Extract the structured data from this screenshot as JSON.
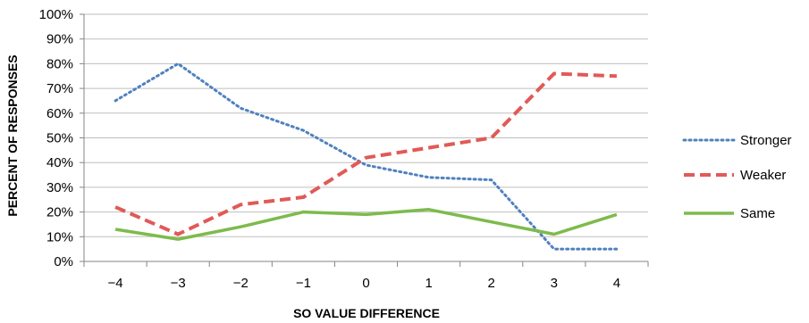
{
  "chart_data": {
    "type": "line",
    "xlabel": "SO VALUE DIFFERENCE",
    "ylabel": "PERCENT OF RESPONSES",
    "categories": [
      "−4",
      "−3",
      "−2",
      "−1",
      "0",
      "1",
      "2",
      "3",
      "4"
    ],
    "ylim": [
      0,
      100
    ],
    "yticks": [
      "0%",
      "10%",
      "20%",
      "30%",
      "40%",
      "50%",
      "60%",
      "70%",
      "80%",
      "90%",
      "100%"
    ],
    "grid": true,
    "legend": "right",
    "series": [
      {
        "name": "Stronger",
        "values": [
          65,
          80,
          62,
          53,
          39,
          34,
          33,
          5,
          5
        ],
        "color": "#4f81bd",
        "style": "dotted"
      },
      {
        "name": "Weaker",
        "values": [
          22,
          11,
          23,
          26,
          42,
          46,
          50,
          76,
          75
        ],
        "color": "#e05a57",
        "style": "dashed"
      },
      {
        "name": "Same",
        "values": [
          13,
          9,
          14,
          20,
          19,
          21,
          16,
          11,
          19
        ],
        "color": "#7dbb4c",
        "style": "solid"
      }
    ]
  }
}
